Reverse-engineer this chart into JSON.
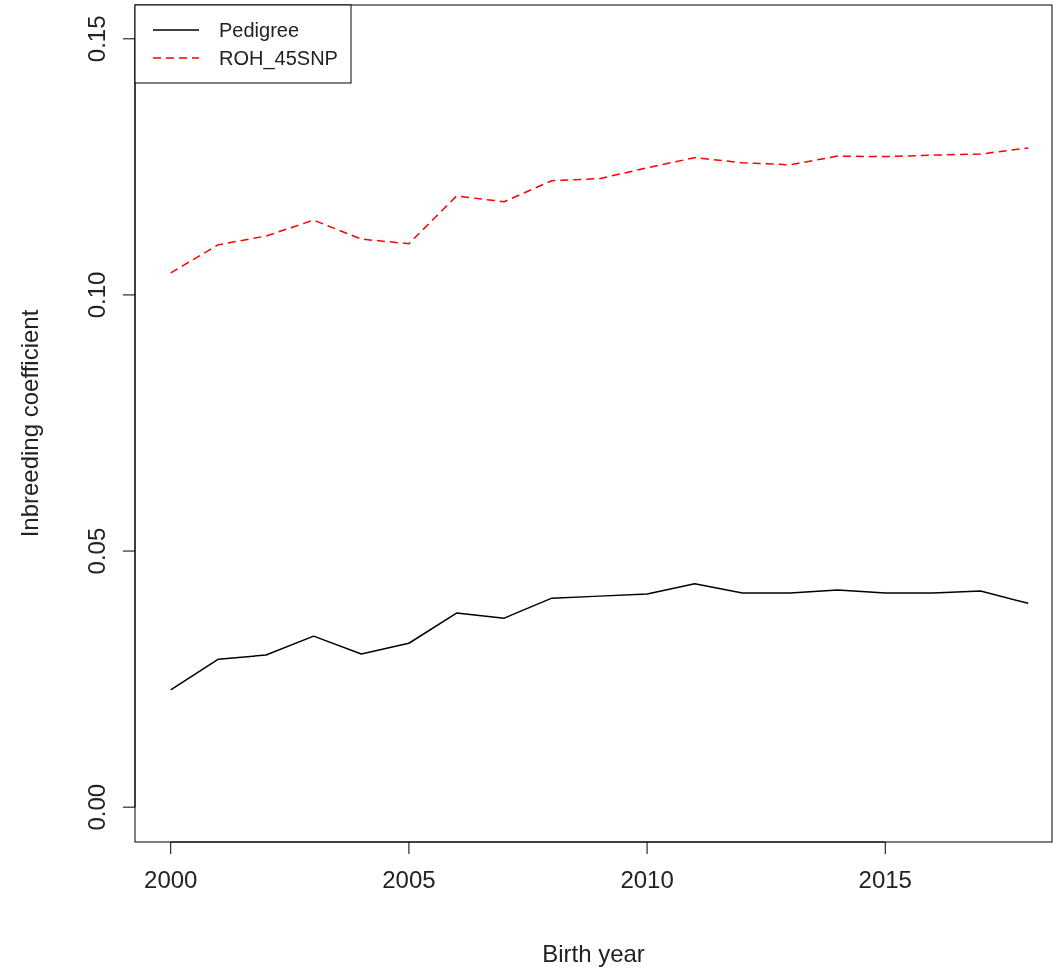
{
  "chart_data": {
    "type": "line",
    "xlabel": "Birth year",
    "ylabel": "Inbreeding coefficient",
    "x": [
      2000,
      2001,
      2002,
      2003,
      2004,
      2005,
      2006,
      2007,
      2008,
      2009,
      2010,
      2011,
      2012,
      2013,
      2014,
      2015,
      2016,
      2017,
      2018
    ],
    "series": [
      {
        "name": "Pedigree",
        "color": "#000000",
        "line_style": "solid",
        "values": [
          0.0229,
          0.0289,
          0.0297,
          0.0334,
          0.0299,
          0.032,
          0.0379,
          0.0369,
          0.0408,
          0.0412,
          0.0416,
          0.0436,
          0.0418,
          0.0418,
          0.0424,
          0.0418,
          0.0418,
          0.0422,
          0.0398
        ]
      },
      {
        "name": "ROH_45SNP",
        "color": "#ff0000",
        "line_style": "dashed",
        "values": [
          0.1043,
          0.1098,
          0.1115,
          0.1146,
          0.1109,
          0.11,
          0.1193,
          0.1182,
          0.1223,
          0.1227,
          0.1248,
          0.1268,
          0.1258,
          0.1254,
          0.1271,
          0.127,
          0.1273,
          0.1275,
          0.1287
        ]
      }
    ],
    "xlim": [
      1999.25,
      2018.5
    ],
    "xticks": [
      2000,
      2005,
      2010,
      2015
    ],
    "ylim": [
      -0.0068,
      0.1566
    ],
    "yticks": [
      {
        "value": 0,
        "label": "0.00"
      },
      {
        "value": 0.05,
        "label": "0.05"
      },
      {
        "value": 0.1,
        "label": "0.10"
      },
      {
        "value": 0.15,
        "label": "0.15"
      }
    ],
    "grid": false,
    "legend": "top left"
  }
}
